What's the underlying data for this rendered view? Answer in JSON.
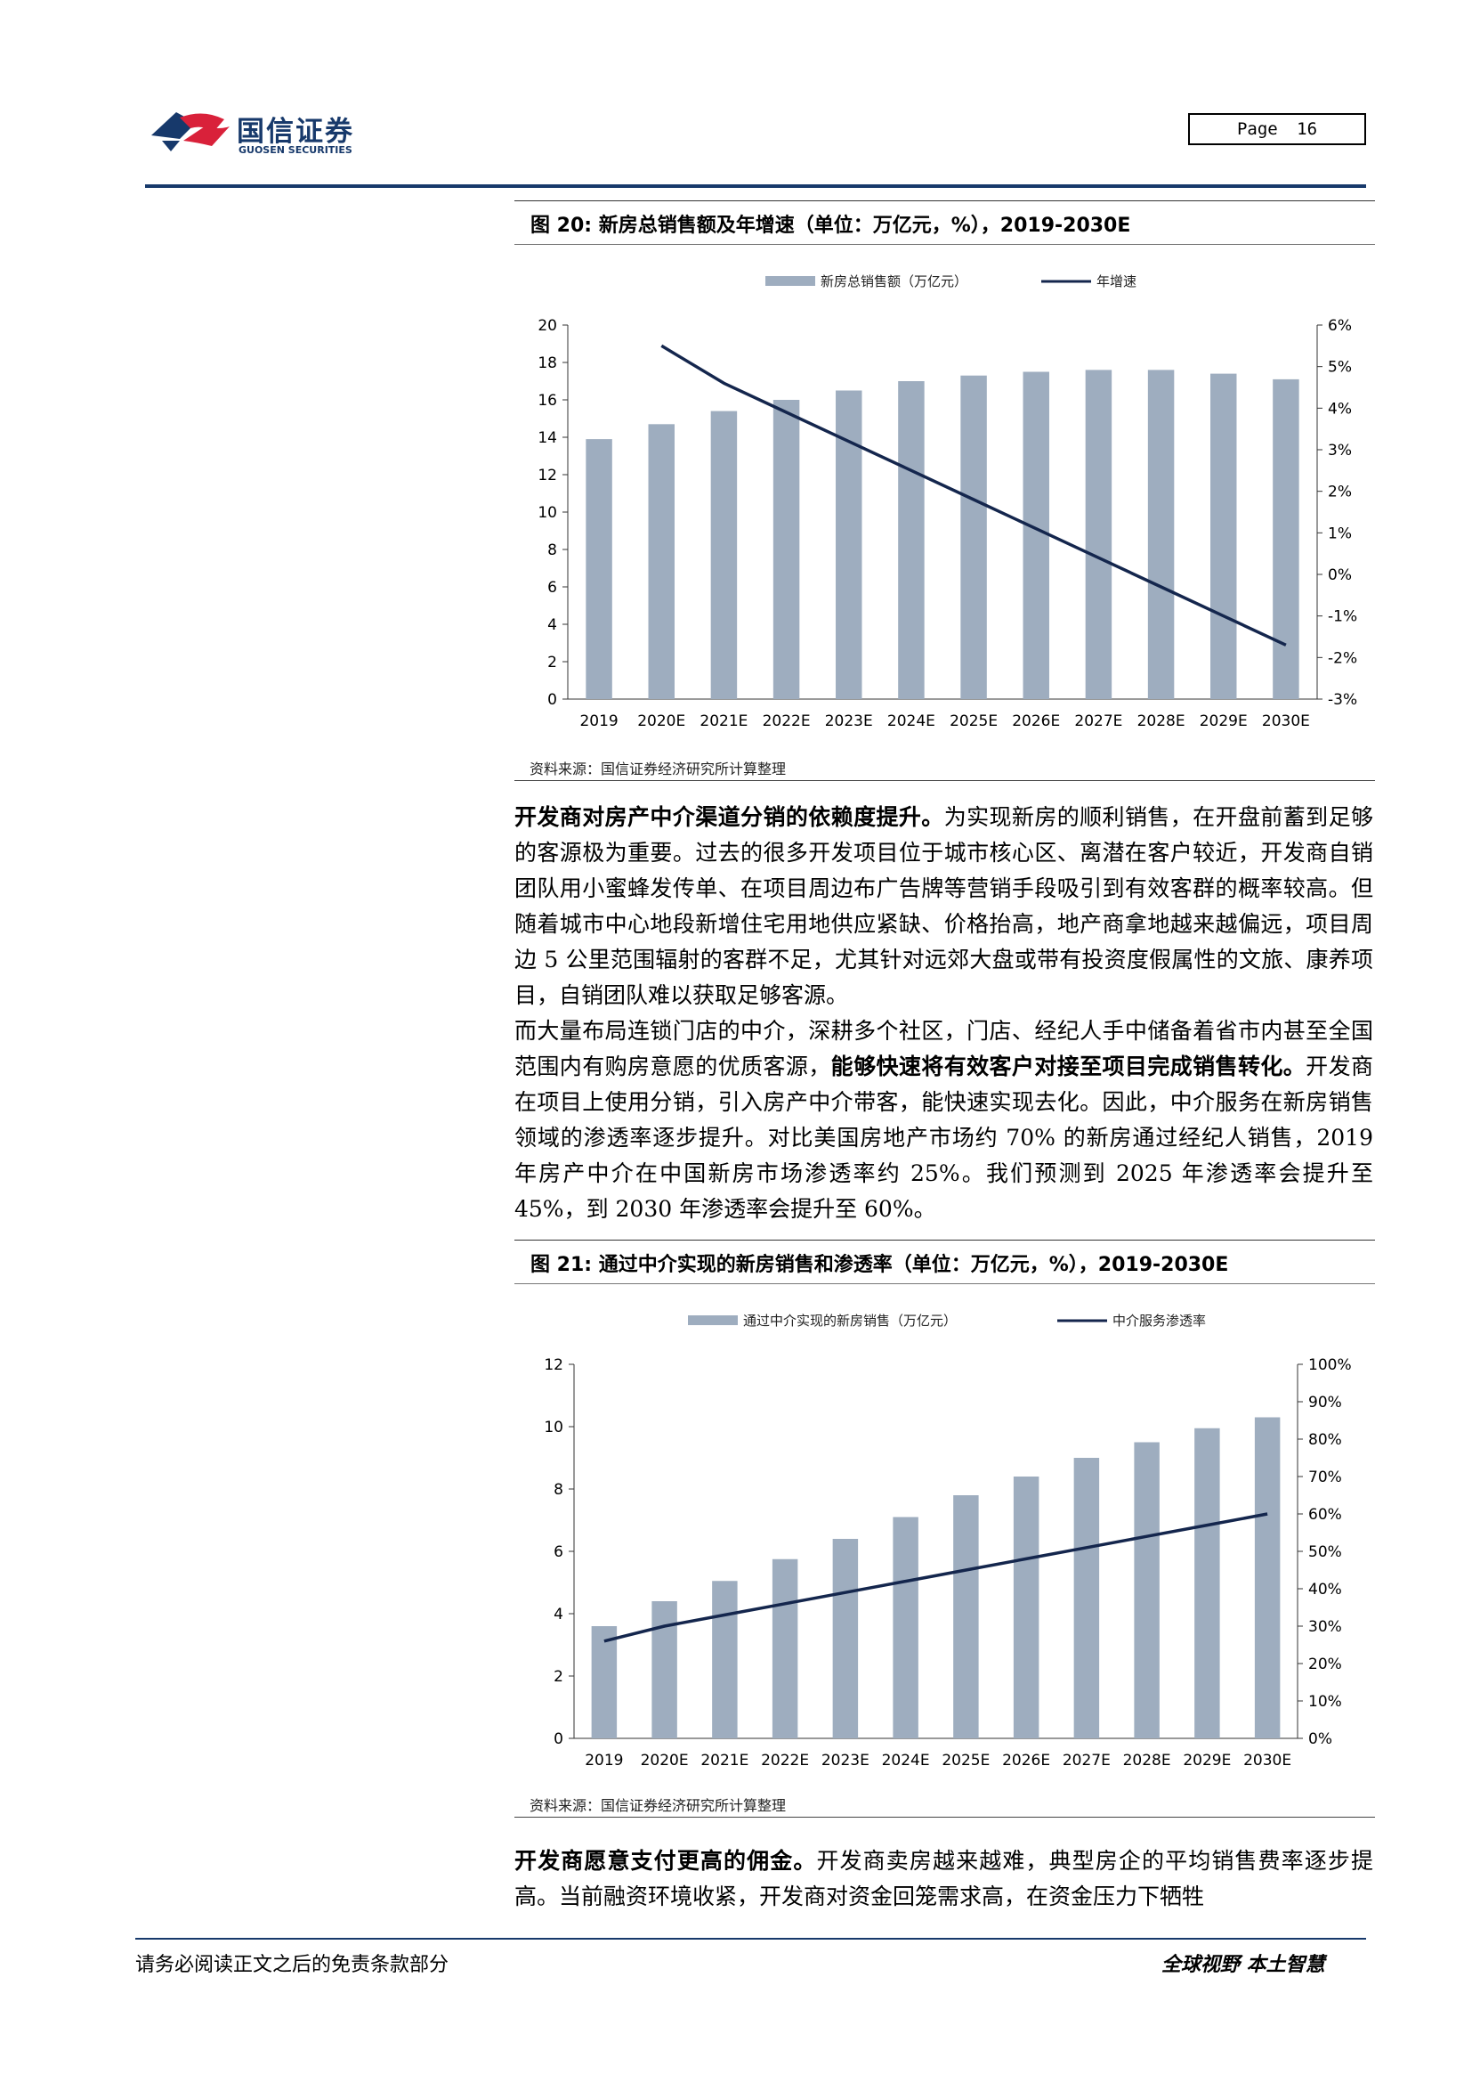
{
  "header": {
    "brand_cn": "国信证券",
    "brand_en": "GUOSEN SECURITIES",
    "page_label": "Page",
    "page_number": "16"
  },
  "figure20": {
    "title": "图 20: 新房总销售额及年增速（单位：万亿元，%），2019-2030E",
    "source": "资料来源：国信证券经济研究所计算整理",
    "chart_data": {
      "type": "bar",
      "categories": [
        "2019",
        "2020E",
        "2021E",
        "2022E",
        "2023E",
        "2024E",
        "2025E",
        "2026E",
        "2027E",
        "2028E",
        "2029E",
        "2030E"
      ],
      "series": [
        {
          "name": "新房总销售额（万亿元）",
          "type": "bar",
          "axis": "left",
          "values": [
            13.9,
            14.7,
            15.4,
            16.0,
            16.5,
            17.0,
            17.3,
            17.5,
            17.6,
            17.6,
            17.4,
            17.1
          ]
        },
        {
          "name": "年增速",
          "type": "line",
          "axis": "right",
          "values": [
            null,
            5.5,
            4.6,
            3.9,
            3.2,
            2.5,
            1.8,
            1.1,
            0.4,
            -0.3,
            -1.0,
            -1.7
          ]
        }
      ],
      "y_left": {
        "min": 0,
        "max": 20,
        "step": 2,
        "ticks": [
          "0",
          "2",
          "4",
          "6",
          "8",
          "10",
          "12",
          "14",
          "16",
          "18",
          "20"
        ]
      },
      "y_right": {
        "min": -3,
        "max": 6,
        "step": 1,
        "ticks": [
          "-3%",
          "-2%",
          "-1%",
          "0%",
          "1%",
          "2%",
          "3%",
          "4%",
          "5%",
          "6%"
        ]
      },
      "legend_position": "top",
      "grid": false
    }
  },
  "paragraph1": {
    "bold": "开发商对房产中介渠道分销的依赖度提升。",
    "text": "为实现新房的顺利销售，在开盘前蓄到足够的客源极为重要。过去的很多开发项目位于城市核心区、离潜在客户较近，开发商自销团队用小蜜蜂发传单、在项目周边布广告牌等营销手段吸引到有效客群的概率较高。但随着城市中心地段新增住宅用地供应紧缺、价格抬高，地产商拿地越来越偏远，项目周边 5 公里范围辐射的客群不足，尤其针对远郊大盘或带有投资度假属性的文旅、康养项目，自销团队难以获取足够客源。"
  },
  "paragraph2": {
    "text_a": "而大量布局连锁门店的中介，深耕多个社区，门店、经纪人手中储备着省市内甚至全国范围内有购房意愿的优质客源，",
    "bold": "能够快速将有效客户对接至项目完成销售转化。",
    "text_b": "开发商在项目上使用分销，引入房产中介带客，能快速实现去化。因此，中介服务在新房销售领域的渗透率逐步提升。对比美国房地产市场约 70% 的新房通过经纪人销售，2019 年房产中介在中国新房市场渗透率约 25%。我们预测到 2025 年渗透率会提升至 45%，到 2030 年渗透率会提升至 60%。"
  },
  "figure21": {
    "title": "图 21: 通过中介实现的新房销售和渗透率（单位：万亿元，%），2019-2030E",
    "source": "资料来源：国信证券经济研究所计算整理",
    "chart_data": {
      "type": "bar",
      "categories": [
        "2019",
        "2020E",
        "2021E",
        "2022E",
        "2023E",
        "2024E",
        "2025E",
        "2026E",
        "2027E",
        "2028E",
        "2029E",
        "2030E"
      ],
      "series": [
        {
          "name": "通过中介实现的新房销售（万亿元）",
          "type": "bar",
          "axis": "left",
          "values": [
            3.6,
            4.4,
            5.05,
            5.75,
            6.4,
            7.1,
            7.8,
            8.4,
            9.0,
            9.5,
            9.95,
            10.3
          ]
        },
        {
          "name": "中介服务渗透率",
          "type": "line",
          "axis": "right",
          "values": [
            26,
            30,
            33,
            36,
            39,
            42,
            45,
            48,
            51,
            54,
            57,
            60
          ]
        }
      ],
      "y_left": {
        "min": 0,
        "max": 12,
        "step": 2,
        "ticks": [
          "0",
          "2",
          "4",
          "6",
          "8",
          "10",
          "12"
        ]
      },
      "y_right": {
        "min": 0,
        "max": 100,
        "step": 10,
        "ticks": [
          "0%",
          "10%",
          "20%",
          "30%",
          "40%",
          "50%",
          "60%",
          "70%",
          "80%",
          "90%",
          "100%"
        ]
      },
      "legend_position": "top",
      "grid": false
    }
  },
  "paragraph3": {
    "bold": "开发商愿意支付更高的佣金。",
    "text": "开发商卖房越来越难，典型房企的平均销售费率逐步提高。当前融资环境收紧，开发商对资金回笼需求高，在资金压力下牺牲"
  },
  "footer": {
    "left": "请务必阅读正文之后的免责条款部分",
    "right": "全球视野  本土智慧"
  },
  "colors": {
    "bar": "#9eadbf",
    "line": "#14264d",
    "brand_navy": "#17396b",
    "brand_red": "#d9213a"
  }
}
